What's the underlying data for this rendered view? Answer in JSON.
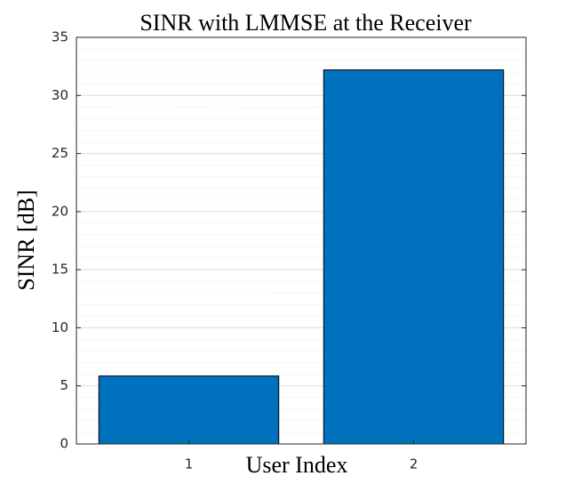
{
  "chart_data": {
    "type": "bar",
    "title": "SINR with LMMSE at the Receiver",
    "x_label": "User Index",
    "y_label": "SINR [dB]",
    "categories": [
      "1",
      "2"
    ],
    "values": [
      5.85,
      32.2
    ],
    "color": "#0072bd",
    "ylim": [
      0,
      35
    ],
    "yticks": [
      0,
      5,
      10,
      15,
      20,
      25,
      30,
      35
    ],
    "grid": true,
    "minor_grid": true
  }
}
